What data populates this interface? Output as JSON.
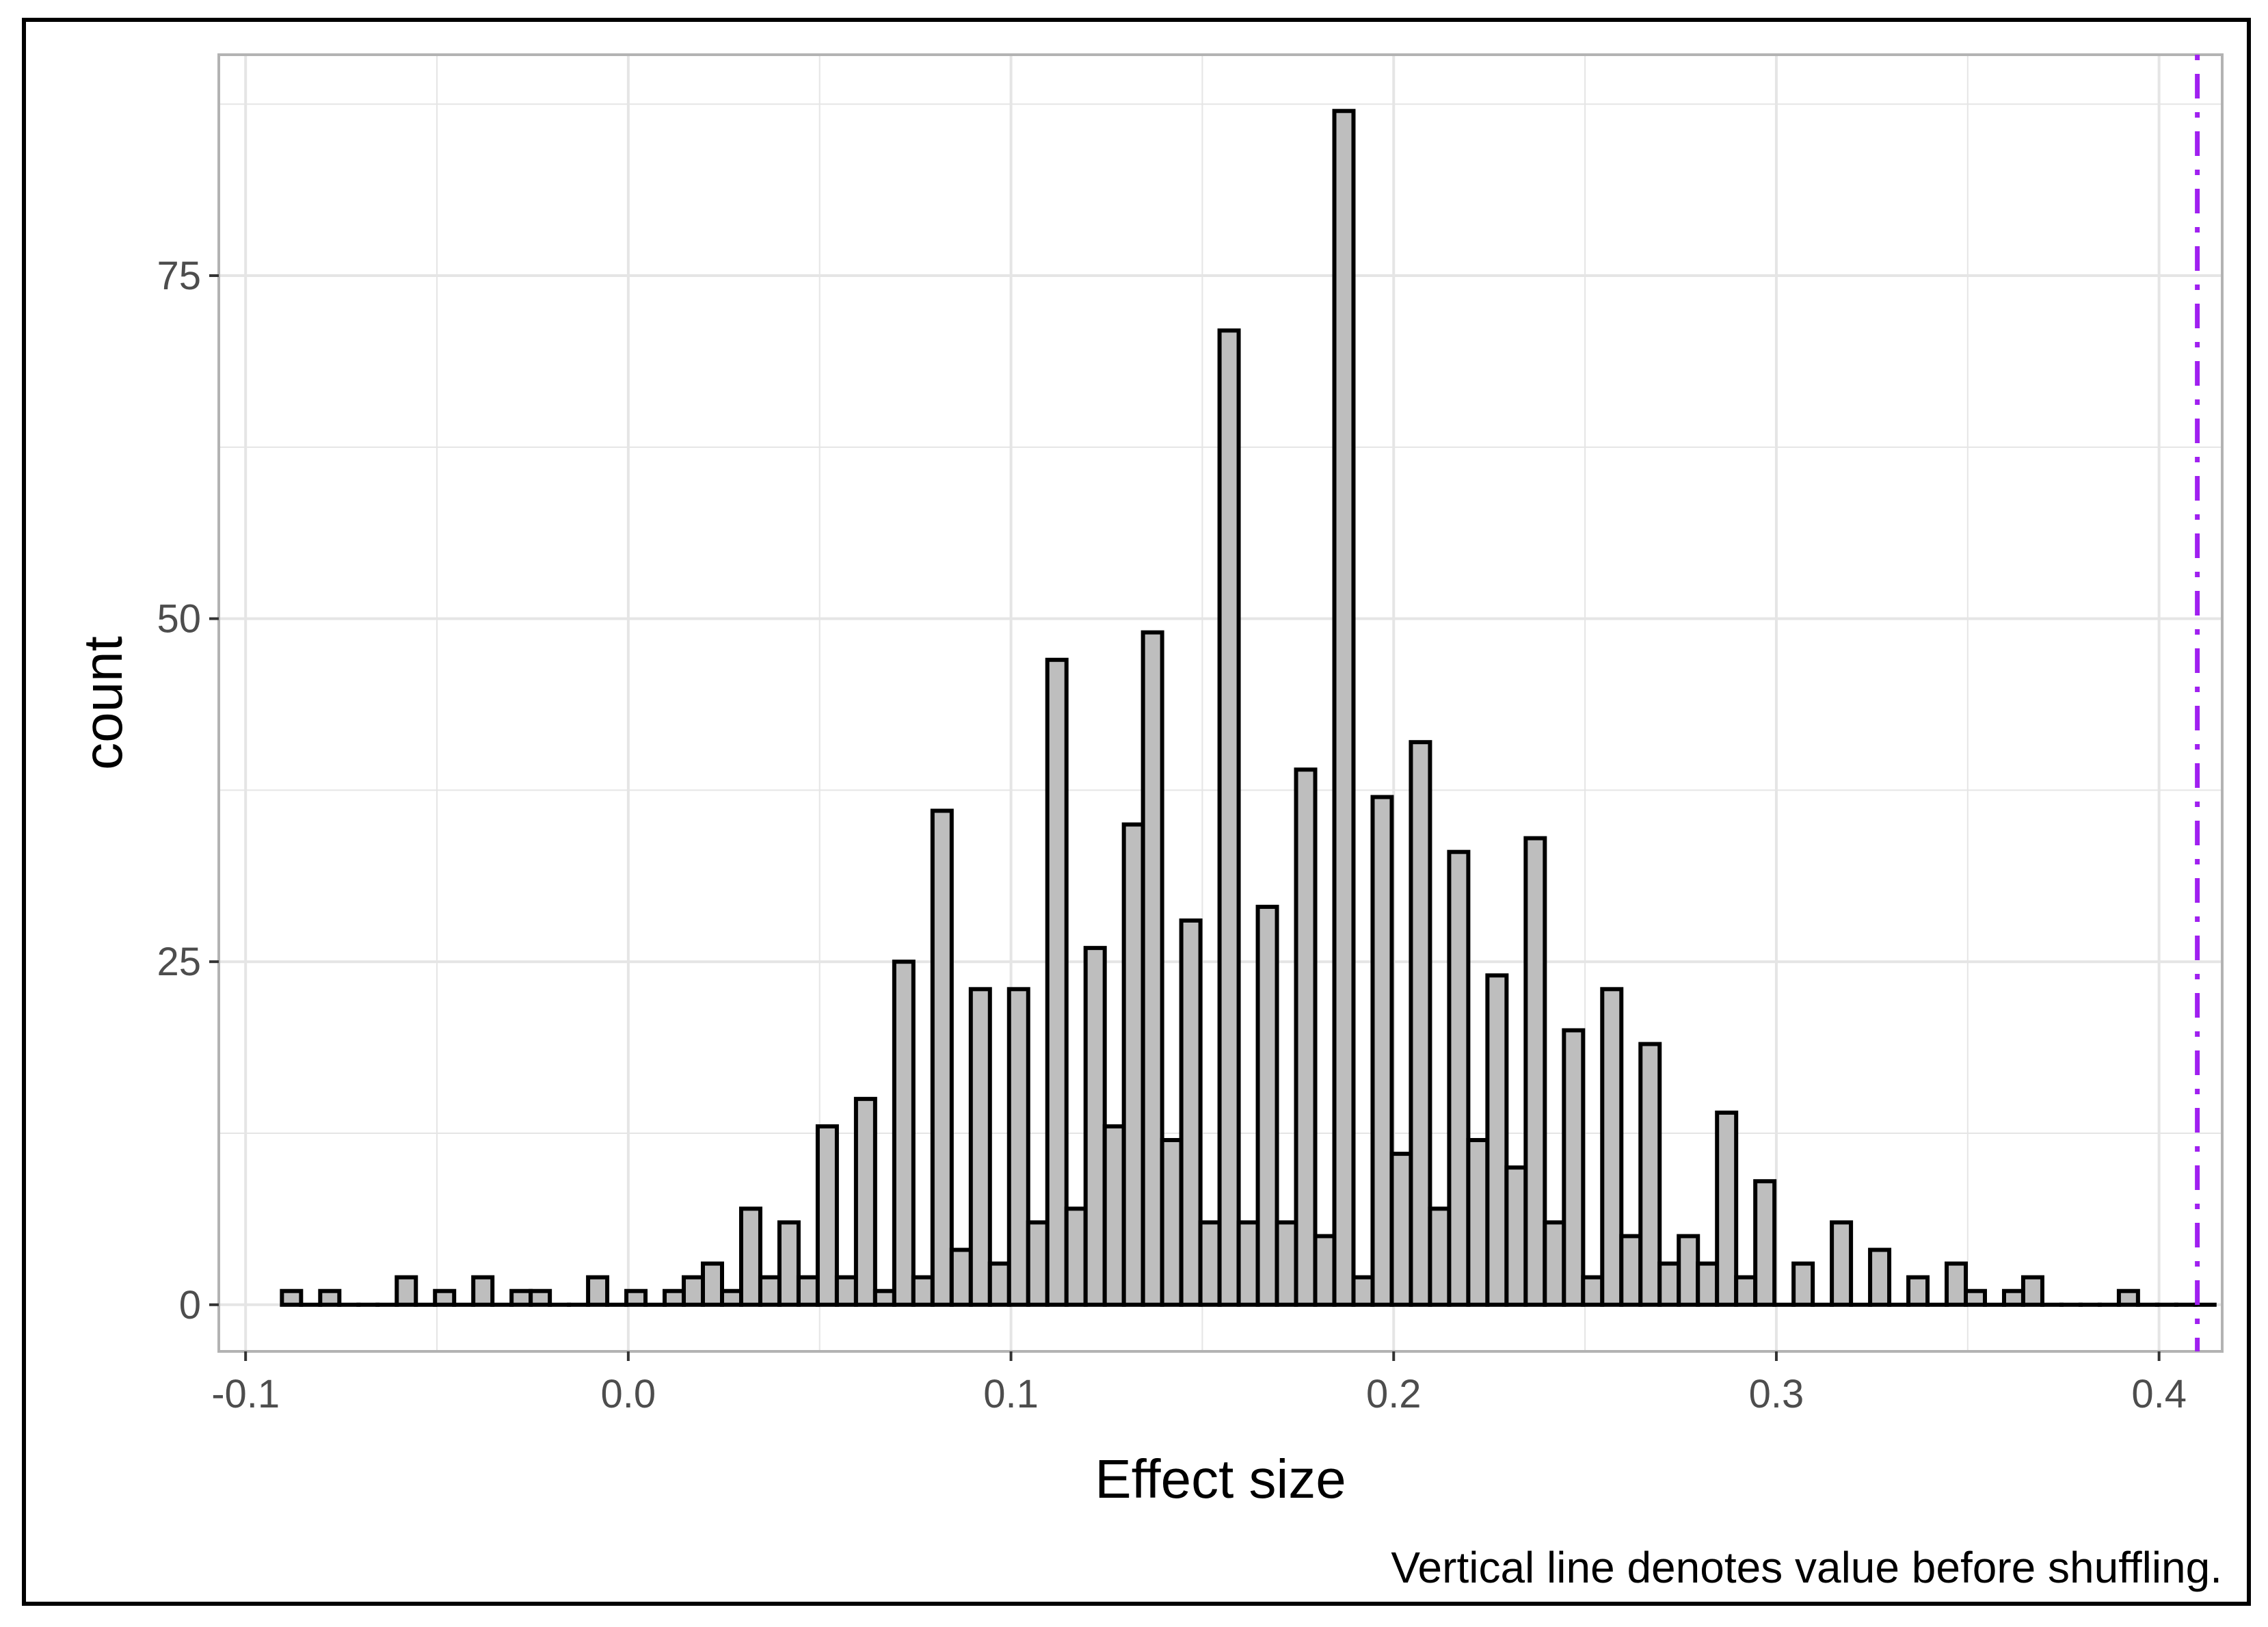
{
  "chart_data": {
    "type": "bar",
    "title": "",
    "xlabel": "Effect size",
    "ylabel": "count",
    "caption": "Vertical line denotes value before shuffling.",
    "xlim": [
      -0.107,
      0.4165
    ],
    "ylim": [
      -3.4,
      91.1
    ],
    "x_ticks": [
      -0.1,
      0.0,
      0.1,
      0.2,
      0.3,
      0.4
    ],
    "x_tick_labels": [
      "-0.1",
      "0.0",
      "0.1",
      "0.2",
      "0.3",
      "0.4"
    ],
    "y_ticks": [
      0,
      25,
      50,
      75
    ],
    "y_tick_labels": [
      "0",
      "25",
      "50",
      "75"
    ],
    "grid": true,
    "bin_width": 0.005,
    "bin_start": -0.0905,
    "bar_fill": "#bebebe",
    "bar_outline": "#000000",
    "reference_line": {
      "x": 0.41,
      "color": "#a020f0",
      "style": "dotdash"
    },
    "values": [
      1,
      0,
      1,
      0,
      0,
      0,
      2,
      0,
      1,
      0,
      2,
      0,
      1,
      1,
      0,
      0,
      2,
      0,
      1,
      0,
      1,
      2,
      3,
      1,
      7,
      2,
      6,
      2,
      13,
      2,
      15,
      1,
      25,
      2,
      36,
      4,
      23,
      3,
      23,
      6,
      47,
      7,
      26,
      13,
      35,
      49,
      12,
      28,
      6,
      71,
      6,
      29,
      6,
      39,
      5,
      87,
      2,
      37,
      11,
      41,
      7,
      33,
      12,
      24,
      10,
      34,
      6,
      20,
      2,
      23,
      5,
      19,
      3,
      5,
      3,
      14,
      2,
      9,
      0,
      3,
      0,
      6,
      0,
      4,
      0,
      2,
      0,
      3,
      1,
      0,
      1,
      2,
      0,
      0,
      0,
      0,
      1,
      0,
      0,
      0,
      0
    ]
  }
}
